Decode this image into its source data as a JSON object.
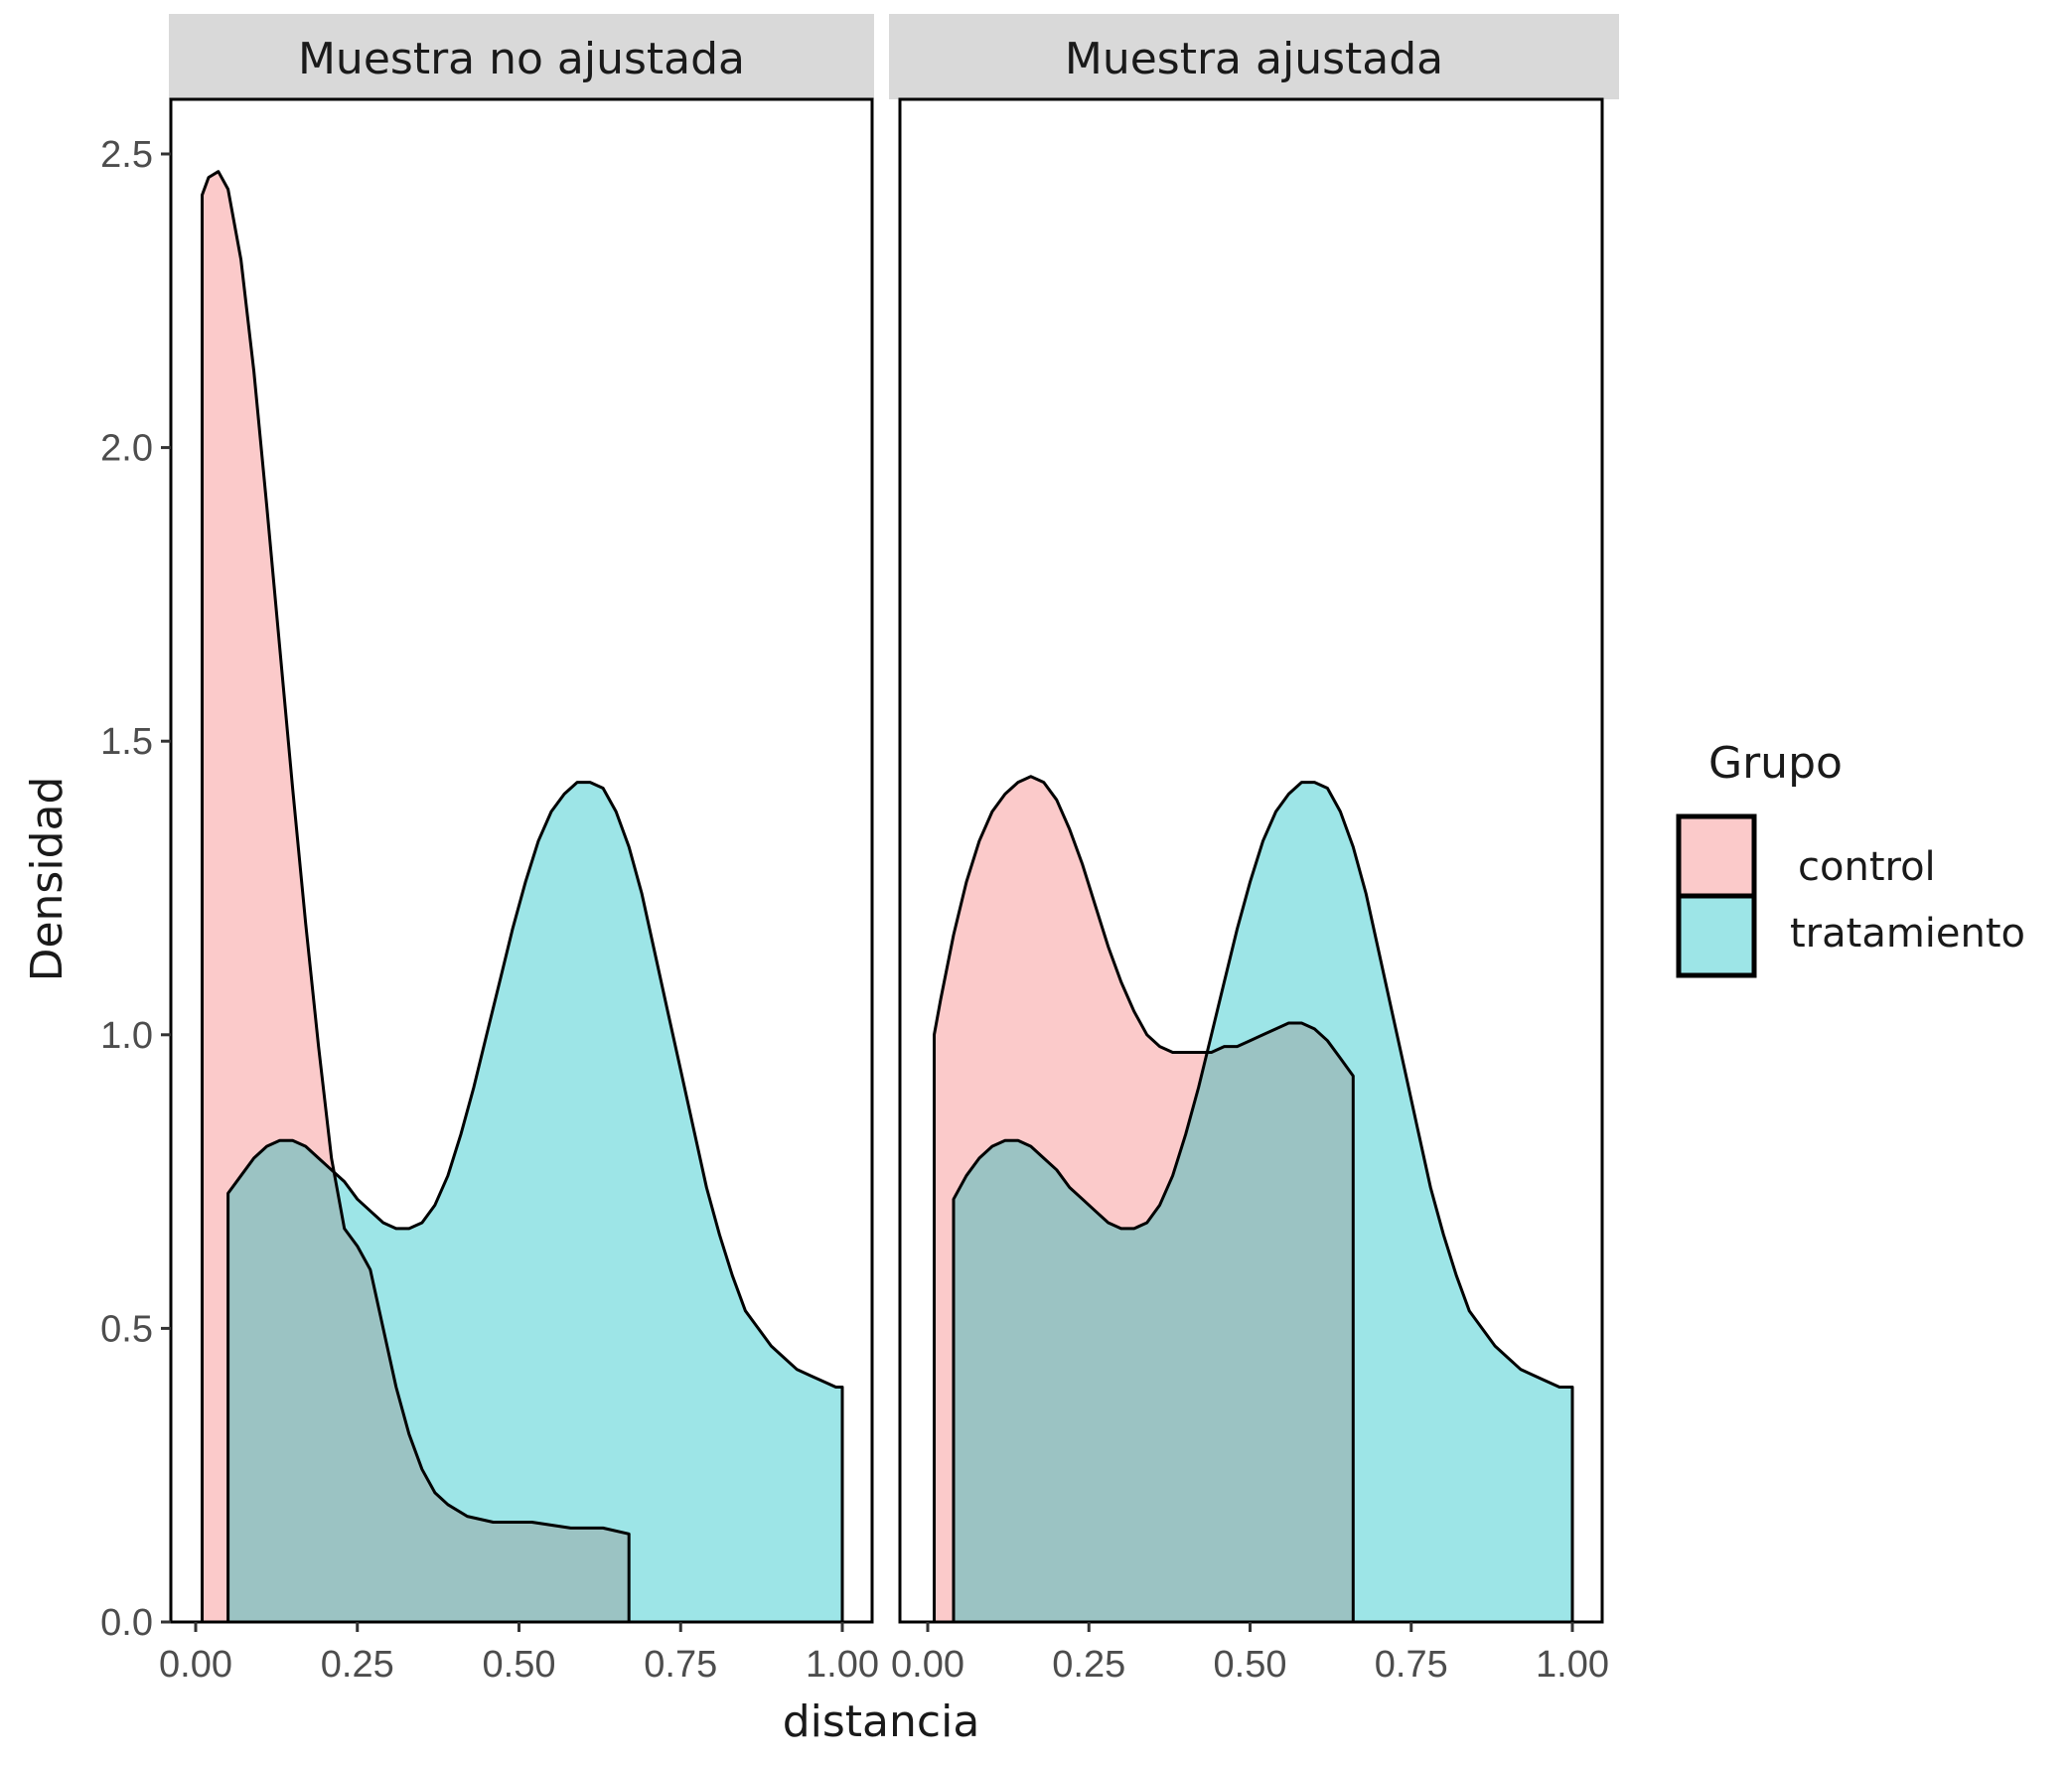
{
  "chart_data": {
    "type": "area",
    "subtype": "density",
    "xlabel": "distancia",
    "ylabel": "Densidad",
    "xlim": [
      0,
      1
    ],
    "ylim": [
      0,
      2.5
    ],
    "x_ticks": [
      "0.00",
      "0.25",
      "0.50",
      "0.75",
      "1.00"
    ],
    "y_ticks": [
      "0.0",
      "0.5",
      "1.0",
      "1.5",
      "2.0",
      "2.5"
    ],
    "grid": false,
    "legend": {
      "title": "Grupo",
      "position": "right",
      "entries": [
        "control",
        "tratamiento"
      ]
    },
    "colors": {
      "control": "#f8766d",
      "tratamiento": "#00bfc4"
    },
    "fill_opacity": 0.4,
    "panels": [
      {
        "title": "Muestra no ajustada",
        "series": [
          {
            "name": "control",
            "x": [
              0.01,
              0.02,
              0.035,
              0.05,
              0.07,
              0.09,
              0.11,
              0.13,
              0.15,
              0.17,
              0.19,
              0.21,
              0.23,
              0.25,
              0.27,
              0.29,
              0.31,
              0.33,
              0.35,
              0.37,
              0.39,
              0.42,
              0.46,
              0.52,
              0.58,
              0.63,
              0.67
            ],
            "y": [
              2.43,
              2.46,
              2.47,
              2.44,
              2.32,
              2.13,
              1.9,
              1.66,
              1.42,
              1.19,
              0.98,
              0.79,
              0.67,
              0.64,
              0.6,
              0.5,
              0.4,
              0.32,
              0.26,
              0.22,
              0.2,
              0.18,
              0.17,
              0.17,
              0.16,
              0.16,
              0.15
            ]
          },
          {
            "name": "tratamiento",
            "x": [
              0.05,
              0.07,
              0.09,
              0.11,
              0.13,
              0.15,
              0.17,
              0.19,
              0.21,
              0.23,
              0.25,
              0.27,
              0.29,
              0.31,
              0.33,
              0.35,
              0.37,
              0.39,
              0.41,
              0.43,
              0.45,
              0.47,
              0.49,
              0.51,
              0.53,
              0.55,
              0.57,
              0.59,
              0.61,
              0.63,
              0.65,
              0.67,
              0.69,
              0.71,
              0.73,
              0.75,
              0.77,
              0.79,
              0.81,
              0.83,
              0.85,
              0.87,
              0.89,
              0.91,
              0.93,
              0.95,
              0.97,
              0.99,
              1.0
            ],
            "y": [
              0.73,
              0.76,
              0.79,
              0.81,
              0.82,
              0.82,
              0.81,
              0.79,
              0.77,
              0.75,
              0.72,
              0.7,
              0.68,
              0.67,
              0.67,
              0.68,
              0.71,
              0.76,
              0.83,
              0.91,
              1.0,
              1.09,
              1.18,
              1.26,
              1.33,
              1.38,
              1.41,
              1.43,
              1.43,
              1.42,
              1.38,
              1.32,
              1.24,
              1.14,
              1.04,
              0.94,
              0.84,
              0.74,
              0.66,
              0.59,
              0.53,
              0.5,
              0.47,
              0.45,
              0.43,
              0.42,
              0.41,
              0.4,
              0.4
            ]
          }
        ]
      },
      {
        "title": "Muestra ajustada",
        "series": [
          {
            "name": "control",
            "x": [
              0.01,
              0.02,
              0.04,
              0.06,
              0.08,
              0.1,
              0.12,
              0.14,
              0.16,
              0.18,
              0.2,
              0.22,
              0.24,
              0.26,
              0.28,
              0.3,
              0.32,
              0.34,
              0.36,
              0.38,
              0.4,
              0.42,
              0.44,
              0.46,
              0.48,
              0.5,
              0.52,
              0.54,
              0.56,
              0.58,
              0.6,
              0.62,
              0.64,
              0.66
            ],
            "y": [
              1.0,
              1.06,
              1.17,
              1.26,
              1.33,
              1.38,
              1.41,
              1.43,
              1.44,
              1.43,
              1.4,
              1.35,
              1.29,
              1.22,
              1.15,
              1.09,
              1.04,
              1.0,
              0.98,
              0.97,
              0.97,
              0.97,
              0.97,
              0.98,
              0.98,
              0.99,
              1.0,
              1.01,
              1.02,
              1.02,
              1.01,
              0.99,
              0.96,
              0.93
            ]
          },
          {
            "name": "tratamiento",
            "x": [
              0.04,
              0.06,
              0.08,
              0.1,
              0.12,
              0.14,
              0.16,
              0.18,
              0.2,
              0.22,
              0.24,
              0.26,
              0.28,
              0.3,
              0.32,
              0.34,
              0.36,
              0.38,
              0.4,
              0.42,
              0.44,
              0.46,
              0.48,
              0.5,
              0.52,
              0.54,
              0.56,
              0.58,
              0.6,
              0.62,
              0.64,
              0.66,
              0.68,
              0.7,
              0.72,
              0.74,
              0.76,
              0.78,
              0.8,
              0.82,
              0.84,
              0.86,
              0.88,
              0.9,
              0.92,
              0.94,
              0.96,
              0.98,
              1.0
            ],
            "y": [
              0.72,
              0.76,
              0.79,
              0.81,
              0.82,
              0.82,
              0.81,
              0.79,
              0.77,
              0.74,
              0.72,
              0.7,
              0.68,
              0.67,
              0.67,
              0.68,
              0.71,
              0.76,
              0.83,
              0.91,
              1.0,
              1.09,
              1.18,
              1.26,
              1.33,
              1.38,
              1.41,
              1.43,
              1.43,
              1.42,
              1.38,
              1.32,
              1.24,
              1.14,
              1.04,
              0.94,
              0.84,
              0.74,
              0.66,
              0.59,
              0.53,
              0.5,
              0.47,
              0.45,
              0.43,
              0.42,
              0.41,
              0.4,
              0.4
            ]
          }
        ]
      }
    ]
  }
}
